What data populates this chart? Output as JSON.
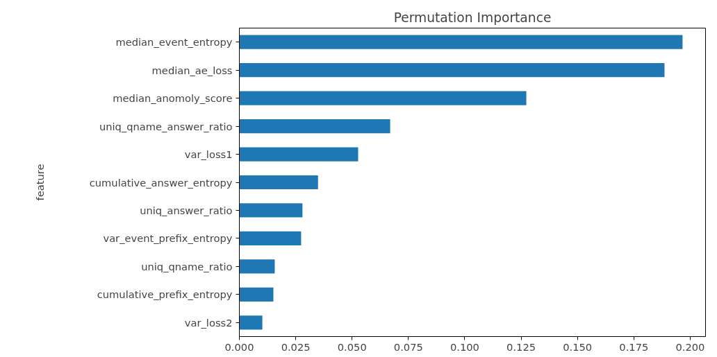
{
  "chart_data": {
    "type": "bar",
    "orientation": "horizontal",
    "title": "Permutation Importance",
    "ylabel": "feature",
    "categories": [
      "median_event_entropy",
      "median_ae_loss",
      "median_anomoly_score",
      "uniq_qname_answer_ratio",
      "var_loss1",
      "cumulative_answer_entropy",
      "uniq_answer_ratio",
      "var_event_prefix_entropy",
      "uniq_qname_ratio",
      "cumulative_prefix_entropy",
      "var_loss2"
    ],
    "values": [
      0.1966,
      0.1886,
      0.1273,
      0.0669,
      0.0527,
      0.0349,
      0.028,
      0.0274,
      0.0157,
      0.0151,
      0.0102
    ],
    "color": "#1f77b4",
    "xlim": [
      0,
      0.2068
    ],
    "xticks": [
      {
        "value": 0,
        "label": "0.000"
      },
      {
        "value": 0.025,
        "label": "0.025"
      },
      {
        "value": 0.05,
        "label": "0.050"
      },
      {
        "value": 0.075,
        "label": "0.075"
      },
      {
        "value": 0.1,
        "label": "0.100"
      },
      {
        "value": 0.125,
        "label": "0.125"
      },
      {
        "value": 0.15,
        "label": "0.150"
      },
      {
        "value": 0.175,
        "label": "0.175"
      },
      {
        "value": 0.2,
        "label": "0.200"
      }
    ],
    "grid": false
  }
}
